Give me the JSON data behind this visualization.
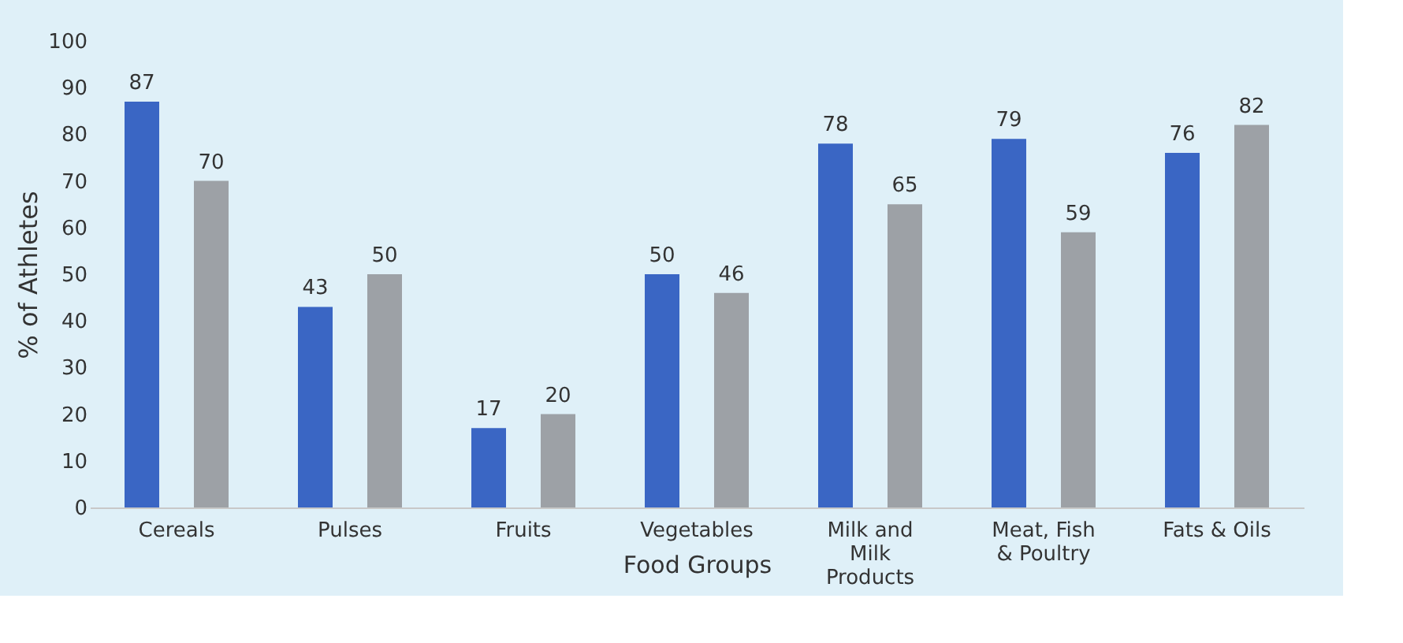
{
  "chart_data": {
    "type": "bar",
    "xlabel": "Food Groups",
    "ylabel": "% of Athletes",
    "categories": [
      "Cereals",
      "Pulses",
      "Fruits",
      "Vegetables",
      "Milk and Milk Products",
      "Meat, Fish & Poultry",
      "Fats & Oils"
    ],
    "series": [
      {
        "color": "#3a66c4",
        "values": [
          87,
          43,
          17,
          50,
          78,
          79,
          76
        ]
      },
      {
        "color": "#9da1a6",
        "values": [
          70,
          50,
          20,
          46,
          65,
          59,
          82
        ]
      }
    ],
    "ylim": [
      0,
      100
    ],
    "yticks": [
      0,
      10,
      20,
      30,
      40,
      50,
      60,
      70,
      80,
      90,
      100
    ],
    "data_labels": true,
    "grid": false,
    "legend": false
  }
}
